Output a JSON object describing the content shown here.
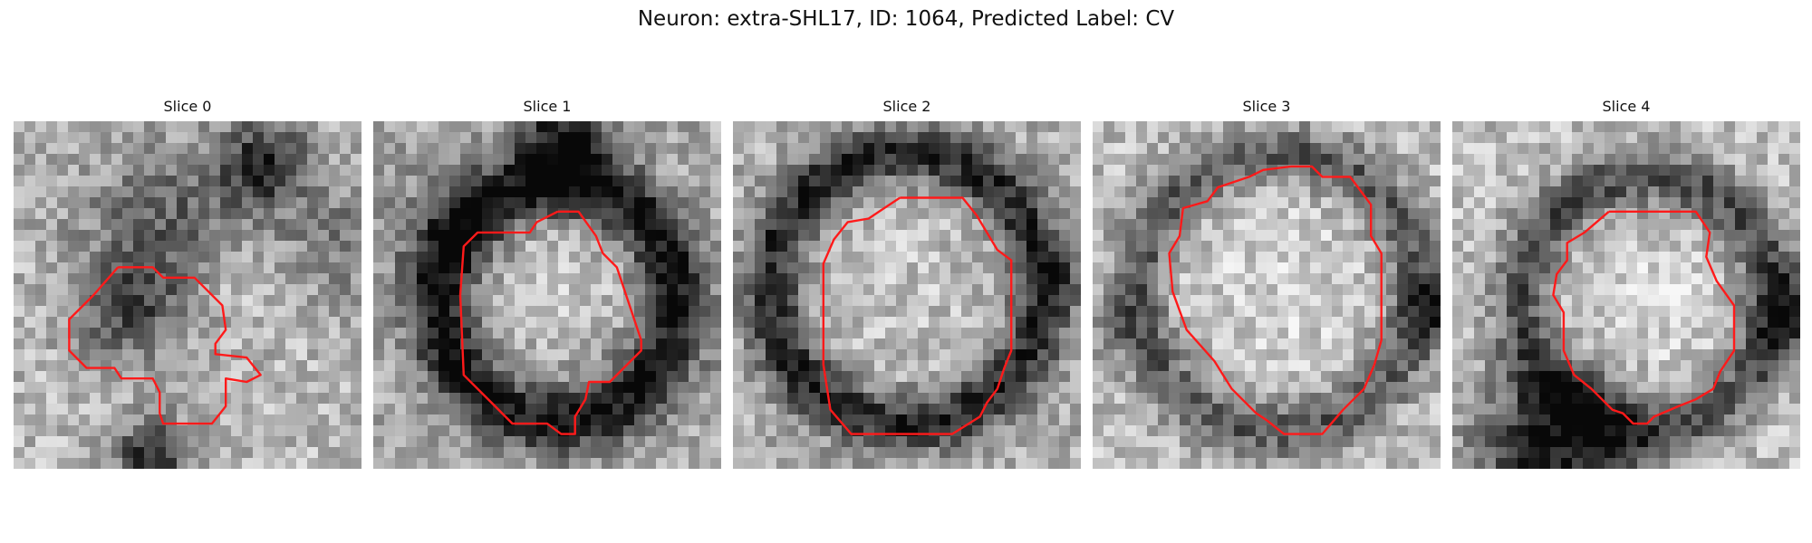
{
  "figure": {
    "title": "Neuron: extra-SHL17, ID: 1064, Predicted Label: CV"
  },
  "colors": {
    "contour": "#ff1a1a",
    "background": "#ffffff"
  },
  "panels": [
    {
      "title": "Slice 0"
    },
    {
      "title": "Slice 1"
    },
    {
      "title": "Slice 2"
    },
    {
      "title": "Slice 3"
    },
    {
      "title": "Slice 4"
    }
  ]
}
